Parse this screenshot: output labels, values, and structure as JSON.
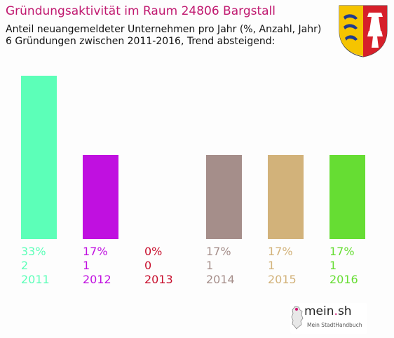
{
  "header": {
    "title": "Gründungsaktivität im Raum 24806 Bargstall",
    "subtitle_line1": "Anteil neuangemeldeter Unternehmen pro Jahr (%, Anzahl, Jahr)",
    "subtitle_line2": "6 Gründungen zwischen 2011-2016, Trend absteigend:"
  },
  "logo": {
    "name_part1": "mein",
    "name_dot": ".",
    "name_part2": "sh",
    "tagline": "Mein StadtHandbuch"
  },
  "crest": {
    "icon": "schleswig-holstein-crest-icon"
  },
  "chart_data": {
    "type": "bar",
    "categories": [
      "2011",
      "2012",
      "2013",
      "2014",
      "2015",
      "2016"
    ],
    "values": [
      33,
      17,
      0,
      17,
      17,
      17
    ],
    "percent_labels": [
      "33%",
      "17%",
      "0%",
      "17%",
      "17%",
      "17%"
    ],
    "counts": [
      "2",
      "1",
      "0",
      "1",
      "1",
      "1"
    ],
    "colors": [
      "#5cffb8",
      "#c010e0",
      "#c8102e",
      "#a58e8a",
      "#d2b27a",
      "#66dd33"
    ],
    "ylim": [
      0,
      33
    ],
    "grid": false,
    "legend": "none"
  }
}
